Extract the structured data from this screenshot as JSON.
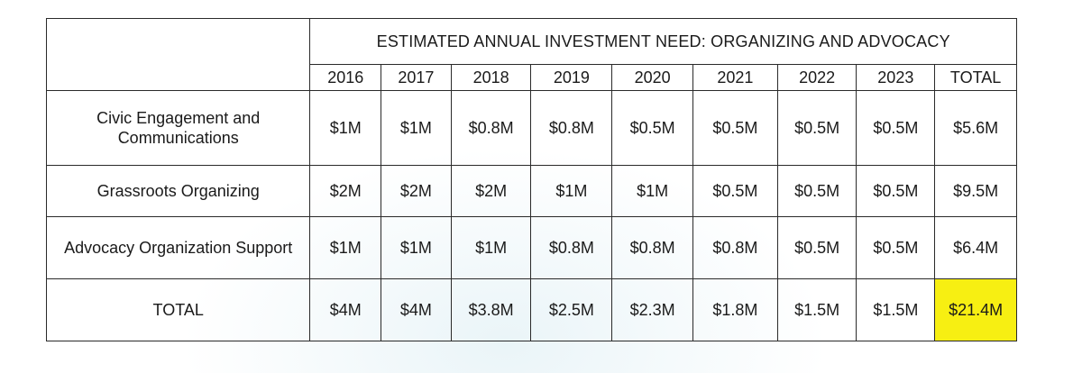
{
  "table": {
    "title": "ESTIMATED ANNUAL INVESTMENT NEED: ORGANIZING AND ADVOCACY",
    "columns": [
      "2016",
      "2017",
      "2018",
      "2019",
      "2020",
      "2021",
      "2022",
      "2023",
      "TOTAL"
    ],
    "rows": [
      {
        "label": "Civic Engagement and Communications",
        "values": [
          "$1M",
          "$1M",
          "$0.8M",
          "$0.8M",
          "$0.5M",
          "$0.5M",
          "$0.5M",
          "$0.5M",
          "$5.6M"
        ]
      },
      {
        "label": "Grassroots Organizing",
        "values": [
          "$2M",
          "$2M",
          "$2M",
          "$1M",
          "$1M",
          "$0.5M",
          "$0.5M",
          "$0.5M",
          "$9.5M"
        ]
      },
      {
        "label": "Advocacy Organization Support",
        "values": [
          "$1M",
          "$1M",
          "$1M",
          "$0.8M",
          "$0.8M",
          "$0.8M",
          "$0.5M",
          "$0.5M",
          "$6.4M"
        ]
      },
      {
        "label": "TOTAL",
        "values": [
          "$4M",
          "$4M",
          "$3.8M",
          "$2.5M",
          "$2.3M",
          "$1.8M",
          "$1.5M",
          "$1.5M",
          "$21.4M"
        ]
      }
    ],
    "highlight_color": "#f7ef12"
  }
}
